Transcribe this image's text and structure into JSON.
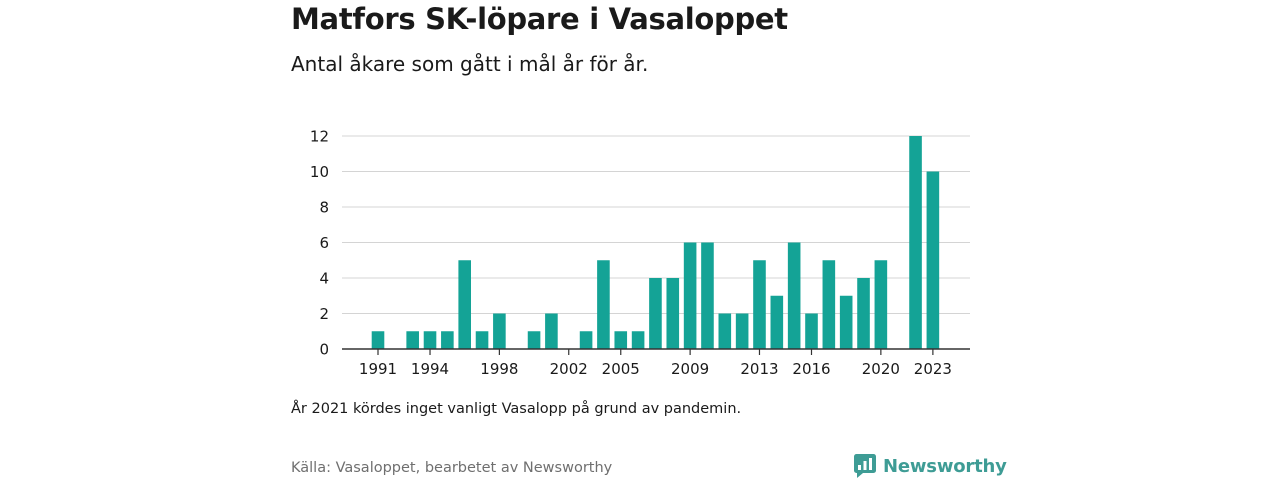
{
  "header": {
    "title": "Matfors SK-löpare i Vasaloppet",
    "subtitle": "Antal åkare som gått i mål år för år."
  },
  "footer": {
    "note": "År 2021 kördes inget vanligt Vasalopp på grund av pandemin.",
    "source": "Källa: Vasaloppet, bearbetet av Newsworthy",
    "brand": "Newsworthy",
    "brand_icon": "newsworthy-logo-icon"
  },
  "colors": {
    "bar": "#14a396",
    "grid": "#d4d4d4",
    "axis": "#333333",
    "brand": "#3e9c95"
  },
  "chart_data": {
    "type": "bar",
    "title": "Matfors SK-löpare i Vasaloppet",
    "subtitle": "Antal åkare som gått i mål år för år.",
    "xlabel": "",
    "ylabel": "",
    "ylim": [
      0,
      12
    ],
    "yticks": [
      0,
      2,
      4,
      6,
      8,
      10,
      12
    ],
    "grid": true,
    "x": [
      1991,
      1992,
      1993,
      1994,
      1995,
      1996,
      1997,
      1998,
      1999,
      2000,
      2001,
      2002,
      2003,
      2004,
      2005,
      2006,
      2007,
      2008,
      2009,
      2010,
      2011,
      2012,
      2013,
      2014,
      2015,
      2016,
      2017,
      2018,
      2019,
      2020,
      2021,
      2022,
      2023
    ],
    "values": [
      1,
      0,
      1,
      1,
      1,
      5,
      1,
      2,
      0,
      1,
      2,
      0,
      1,
      5,
      1,
      1,
      4,
      4,
      6,
      6,
      2,
      2,
      5,
      3,
      6,
      2,
      5,
      3,
      4,
      5,
      0,
      12,
      10
    ],
    "xtick_labels": [
      "1991",
      "1994",
      "1998",
      "2002",
      "2005",
      "2009",
      "2013",
      "2016",
      "2020",
      "2023"
    ]
  }
}
